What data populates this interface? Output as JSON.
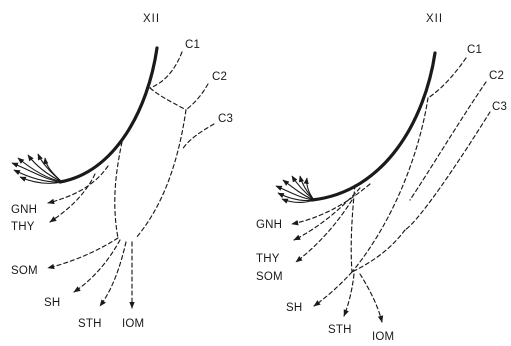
{
  "left_panel": {
    "title": "XII",
    "labels": {
      "c1": "C1",
      "c2": "C2",
      "c3": "C3",
      "gnh": "GNH",
      "thy": "THY",
      "som": "SOM",
      "sh": "SH",
      "sth": "STH",
      "iom": "IOM"
    }
  },
  "right_panel": {
    "title": "XII",
    "labels": {
      "c1": "C1",
      "c2": "C2",
      "c3": "C3",
      "gnh": "GNH",
      "thy": "THY",
      "som": "SOM",
      "sh": "SH",
      "sth": "STH",
      "iom": "IOM"
    }
  }
}
